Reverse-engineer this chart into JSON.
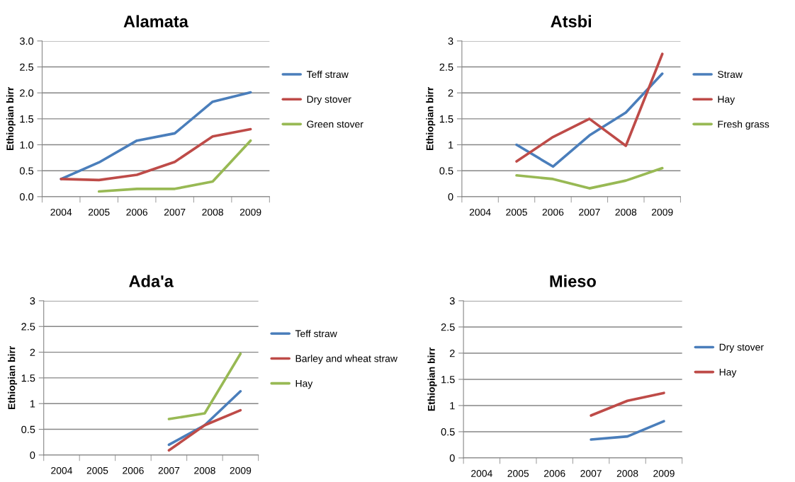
{
  "chart_data": [
    {
      "type": "line",
      "title": "Alamata",
      "ylabel": "Ethiopian birr",
      "categories": [
        "2004",
        "2005",
        "2006",
        "2007",
        "2008",
        "2009"
      ],
      "ylim": [
        0,
        3
      ],
      "yticks": [
        {
          "value": 0,
          "label": "0.0"
        },
        {
          "value": 0.5,
          "label": "0.5"
        },
        {
          "value": 1,
          "label": "1.0"
        },
        {
          "value": 1.5,
          "label": "1.5"
        },
        {
          "value": 2,
          "label": "2.0"
        },
        {
          "value": 2.5,
          "label": "2.5"
        },
        {
          "value": 3,
          "label": "3.0"
        }
      ],
      "grid": "y",
      "legend": "right",
      "series": [
        {
          "name": "Teff straw",
          "color": "#4a7ebb",
          "values": [
            0.34,
            0.66,
            1.08,
            1.22,
            1.83,
            2.01
          ]
        },
        {
          "name": "Dry stover",
          "color": "#be4b48",
          "values": [
            0.34,
            0.32,
            0.42,
            0.67,
            1.16,
            1.3
          ]
        },
        {
          "name": "Green stover",
          "color": "#98b954",
          "values": [
            null,
            0.1,
            0.15,
            0.15,
            0.29,
            1.08
          ]
        }
      ]
    },
    {
      "type": "line",
      "title": "Atsbi",
      "ylabel": "Ethiopian birr",
      "categories": [
        "2004",
        "2005",
        "2006",
        "2007",
        "2008",
        "2009"
      ],
      "ylim": [
        0,
        3
      ],
      "yticks": [
        0,
        0.5,
        1,
        1.5,
        2,
        2.5,
        3
      ],
      "grid": "y",
      "legend": "right",
      "series": [
        {
          "name": "Straw",
          "color": "#4a7ebb",
          "values": [
            null,
            1.0,
            0.58,
            1.18,
            1.62,
            2.37
          ]
        },
        {
          "name": "Hay",
          "color": "#be4b48",
          "values": [
            null,
            0.68,
            1.15,
            1.5,
            0.98,
            2.75
          ]
        },
        {
          "name": "Fresh grass",
          "color": "#98b954",
          "values": [
            null,
            0.41,
            0.34,
            0.16,
            0.31,
            0.55
          ]
        }
      ]
    },
    {
      "type": "line",
      "title": "Ada'a",
      "ylabel": "Ethiopian birr",
      "categories": [
        "2004",
        "2005",
        "2006",
        "2007",
        "2008",
        "2009"
      ],
      "ylim": [
        0,
        3
      ],
      "yticks": [
        0,
        0.5,
        1,
        1.5,
        2,
        2.5,
        3
      ],
      "grid": "y",
      "legend": "right",
      "series": [
        {
          "name": "Teff straw",
          "color": "#4a7ebb",
          "values": [
            null,
            null,
            null,
            0.2,
            0.58,
            1.24
          ]
        },
        {
          "name": "Barley and wheat straw",
          "color": "#be4b48",
          "values": [
            null,
            null,
            null,
            0.09,
            0.58,
            0.87
          ]
        },
        {
          "name": "Hay",
          "color": "#98b954",
          "values": [
            null,
            null,
            null,
            0.7,
            0.81,
            1.97
          ]
        }
      ]
    },
    {
      "type": "line",
      "title": "Mieso",
      "ylabel": "Ethiopian birr",
      "categories": [
        "2004",
        "2005",
        "2006",
        "2007",
        "2008",
        "2009"
      ],
      "ylim": [
        0,
        3
      ],
      "yticks": [
        0,
        0.5,
        1,
        1.5,
        2,
        2.5,
        3
      ],
      "grid": "y",
      "legend": "right",
      "series": [
        {
          "name": "Dry stover",
          "color": "#4a7ebb",
          "values": [
            null,
            null,
            null,
            0.35,
            0.41,
            0.7
          ]
        },
        {
          "name": "Hay",
          "color": "#be4b48",
          "values": [
            null,
            null,
            null,
            0.81,
            1.09,
            1.24
          ]
        }
      ]
    }
  ]
}
